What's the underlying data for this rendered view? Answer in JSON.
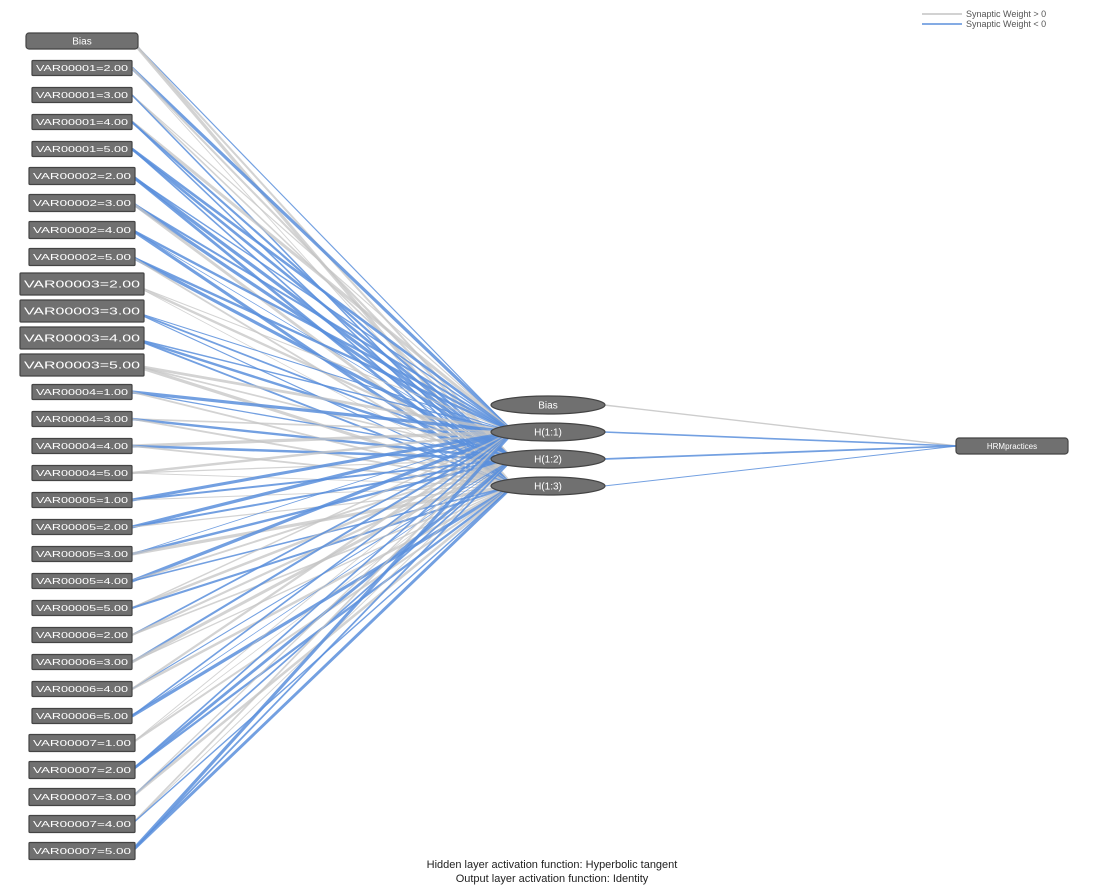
{
  "legend": {
    "items": [
      {
        "label": "Synaptic Weight > 0",
        "color": "#c4c4c4"
      },
      {
        "label": "Synaptic Weight < 0",
        "color": "#5b8fdc"
      }
    ]
  },
  "colors": {
    "positive_weight": "#c4c4c4",
    "negative_weight": "#5b8fdc",
    "node_fill": "#707070",
    "node_stroke": "#444444"
  },
  "input_layer": {
    "bias_label": "Bias",
    "nodes": [
      "VAR00001=2.00",
      "VAR00001=3.00",
      "VAR00001=4.00",
      "VAR00001=5.00",
      "VAR00002=2.00",
      "VAR00002=3.00",
      "VAR00002=4.00",
      "VAR00002=5.00",
      "VAR00003=2.00",
      "VAR00003=3.00",
      "VAR00003=4.00",
      "VAR00003=5.00",
      "VAR00004=1.00",
      "VAR00004=3.00",
      "VAR00004=4.00",
      "VAR00004=5.00",
      "VAR00005=1.00",
      "VAR00005=2.00",
      "VAR00005=3.00",
      "VAR00005=4.00",
      "VAR00005=5.00",
      "VAR00006=2.00",
      "VAR00006=3.00",
      "VAR00006=4.00",
      "VAR00006=5.00",
      "VAR00007=1.00",
      "VAR00007=2.00",
      "VAR00007=3.00",
      "VAR00007=4.00",
      "VAR00007=5.00"
    ]
  },
  "hidden_layer": {
    "bias_label": "Bias",
    "nodes": [
      "H(1:1)",
      "H(1:2)",
      "H(1:3)"
    ]
  },
  "output_layer": {
    "nodes": [
      "HRMpractices"
    ]
  },
  "footer": {
    "hidden_activation": "Hidden layer activation function: Hyperbolic tangent",
    "output_activation": "Output layer activation function: Identity"
  }
}
